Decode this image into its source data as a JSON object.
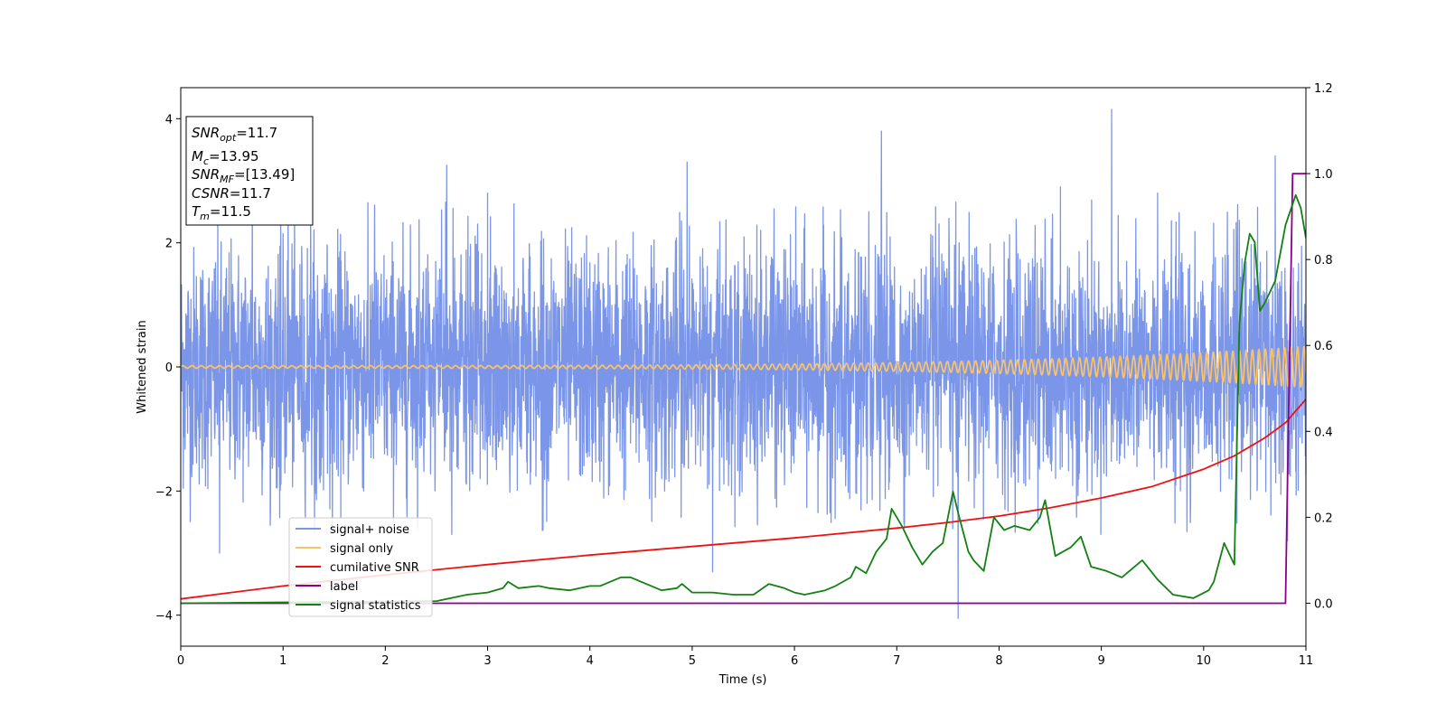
{
  "chart_data": {
    "type": "line",
    "title": "",
    "xlabel": "Time (s)",
    "ylabel": "Whitened strain",
    "xlim": [
      0,
      11
    ],
    "ylim_left": [
      -4.5,
      4.5
    ],
    "ylim_right": [
      -0.1,
      1.2
    ],
    "grid": false,
    "legend_placement": "lower-left",
    "x_ticks": [
      0,
      1,
      2,
      3,
      4,
      5,
      6,
      7,
      8,
      9,
      10,
      11
    ],
    "y_ticks_left": [
      -4,
      -2,
      0,
      2,
      4
    ],
    "y_ticks_right": [
      0.0,
      0.2,
      0.4,
      0.6,
      0.8,
      1.0,
      1.2
    ],
    "y_tick_labels_right": [
      "0.0",
      "0.2",
      "0.4",
      "0.6",
      "0.8",
      "1.0",
      "1.2"
    ],
    "annotations": [
      {
        "base": "SNR",
        "sub": "opt",
        "value": "=11.7"
      },
      {
        "base": "M",
        "sub": "c",
        "value": "=13.95"
      },
      {
        "base": "SNR",
        "sub": "MF",
        "value": "=[13.49]"
      },
      {
        "base": "CSNR",
        "sub": "",
        "value": "=11.7"
      },
      {
        "base": "T",
        "sub": "m",
        "value": "=11.5"
      }
    ],
    "series": [
      {
        "name": "signal+ noise",
        "axis": "left",
        "color": "#7b96e8",
        "kind": "noise",
        "std": 0.95,
        "spikes": [
          [
            0.38,
            -3.0
          ],
          [
            0.7,
            2.7
          ],
          [
            1.05,
            2.6
          ],
          [
            2.6,
            3.25
          ],
          [
            2.65,
            -2.7
          ],
          [
            3.0,
            2.8
          ],
          [
            4.95,
            3.3
          ],
          [
            5.2,
            -3.3
          ],
          [
            6.85,
            3.8
          ],
          [
            7.6,
            -4.05
          ],
          [
            8.6,
            2.9
          ],
          [
            9.1,
            4.15
          ],
          [
            9.55,
            2.8
          ],
          [
            10.7,
            3.4
          ],
          [
            10.82,
            -2.8
          ]
        ]
      },
      {
        "name": "signal only",
        "axis": "left",
        "color": "#f7c26b",
        "kind": "chirp",
        "amp_start": 0.02,
        "amp_end": 0.33
      },
      {
        "name": "cumilative SNR",
        "axis": "right",
        "color": "#ee1111",
        "x": [
          0,
          1,
          2,
          3,
          4,
          5,
          6,
          7,
          7.5,
          8,
          8.5,
          9,
          9.5,
          10,
          10.3,
          10.6,
          10.8,
          11
        ],
        "y": [
          0.01,
          0.04,
          0.066,
          0.09,
          0.112,
          0.132,
          0.152,
          0.175,
          0.188,
          0.203,
          0.222,
          0.245,
          0.272,
          0.312,
          0.343,
          0.385,
          0.42,
          0.475
        ]
      },
      {
        "name": "label",
        "axis": "right",
        "color": "#8b008b",
        "x": [
          0,
          10.8,
          10.87,
          11
        ],
        "y": [
          0,
          0,
          1.0,
          1.0
        ]
      },
      {
        "name": "signal statistics",
        "axis": "right",
        "color": "#128012",
        "x": [
          0,
          2.5,
          2.8,
          3.0,
          3.15,
          3.2,
          3.3,
          3.5,
          3.6,
          3.8,
          4.0,
          4.1,
          4.3,
          4.4,
          4.5,
          4.7,
          4.85,
          4.9,
          5.0,
          5.2,
          5.4,
          5.6,
          5.75,
          5.9,
          6.0,
          6.1,
          6.3,
          6.4,
          6.55,
          6.6,
          6.7,
          6.8,
          6.9,
          6.95,
          7.05,
          7.15,
          7.25,
          7.35,
          7.45,
          7.55,
          7.6,
          7.7,
          7.75,
          7.85,
          7.95,
          8.05,
          8.15,
          8.3,
          8.4,
          8.45,
          8.55,
          8.7,
          8.8,
          8.9,
          9.05,
          9.2,
          9.3,
          9.4,
          9.55,
          9.7,
          9.9,
          10.05,
          10.1,
          10.2,
          10.3,
          10.35,
          10.4,
          10.45,
          10.5,
          10.55,
          10.6,
          10.7,
          10.8,
          10.9,
          10.95,
          11.0
        ],
        "y": [
          0.0,
          0.005,
          0.02,
          0.025,
          0.035,
          0.05,
          0.035,
          0.04,
          0.035,
          0.03,
          0.04,
          0.04,
          0.06,
          0.06,
          0.05,
          0.03,
          0.035,
          0.045,
          0.025,
          0.025,
          0.02,
          0.02,
          0.045,
          0.035,
          0.025,
          0.02,
          0.03,
          0.04,
          0.06,
          0.085,
          0.07,
          0.12,
          0.15,
          0.22,
          0.18,
          0.13,
          0.09,
          0.12,
          0.14,
          0.26,
          0.21,
          0.12,
          0.1,
          0.075,
          0.2,
          0.17,
          0.18,
          0.17,
          0.2,
          0.24,
          0.11,
          0.13,
          0.155,
          0.085,
          0.075,
          0.06,
          0.08,
          0.1,
          0.055,
          0.02,
          0.012,
          0.03,
          0.05,
          0.14,
          0.09,
          0.65,
          0.79,
          0.86,
          0.84,
          0.68,
          0.7,
          0.75,
          0.88,
          0.95,
          0.92,
          0.85
        ]
      }
    ]
  }
}
